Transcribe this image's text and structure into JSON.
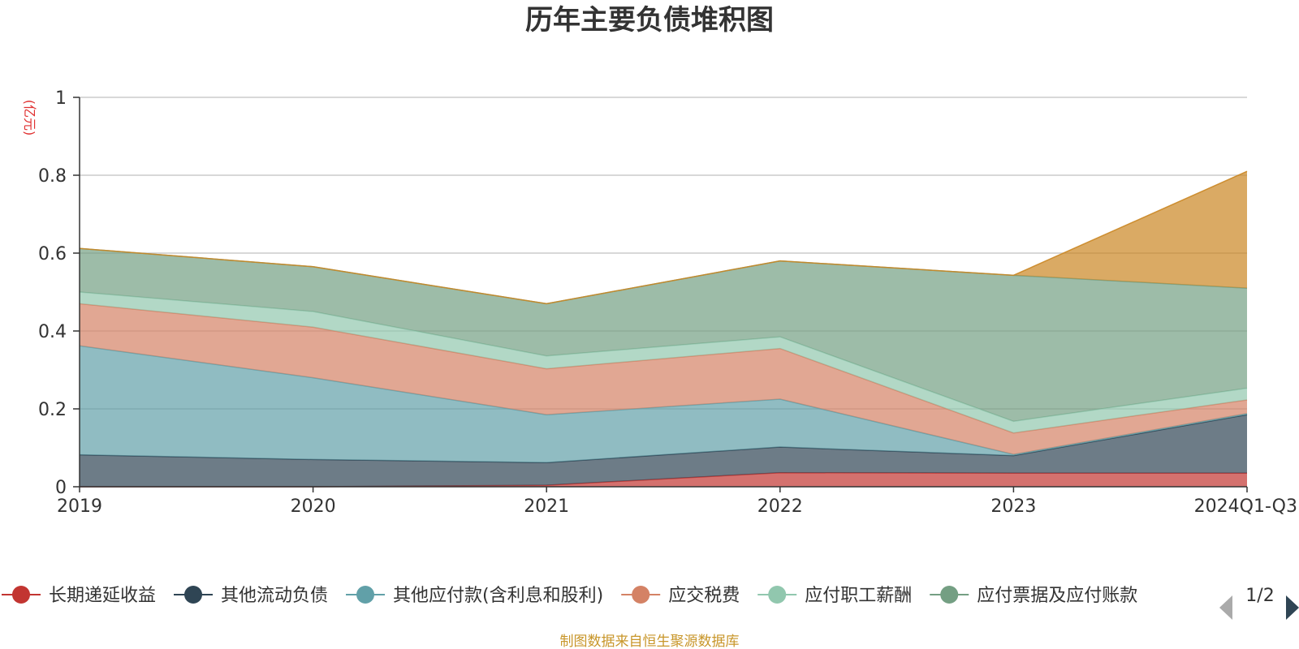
{
  "chart_data": {
    "type": "area",
    "stacked": true,
    "title": "历年主要负债堆积图",
    "unit_label": "(亿元)",
    "categories": [
      "2019",
      "2020",
      "2021",
      "2022",
      "2023",
      "2024Q1-Q3"
    ],
    "ylim": [
      0,
      1
    ],
    "yticks": [
      "0",
      "0.2",
      "0.4",
      "0.6",
      "0.8",
      "1"
    ],
    "grid": true,
    "legend_position": "bottom",
    "series": [
      {
        "name": "长期递延收益",
        "color": "#c23531",
        "values": [
          0.0,
          0.0,
          0.004,
          0.036,
          0.035,
          0.035
        ]
      },
      {
        "name": "其他流动负债",
        "color": "#2f4554",
        "values": [
          0.082,
          0.07,
          0.058,
          0.066,
          0.045,
          0.15
        ]
      },
      {
        "name": "其他应付款(含利息和股利)",
        "color": "#61a0a8",
        "values": [
          0.28,
          0.21,
          0.123,
          0.123,
          0.003,
          0.003
        ]
      },
      {
        "name": "应交税费",
        "color": "#d48265",
        "values": [
          0.108,
          0.13,
          0.118,
          0.13,
          0.055,
          0.035
        ]
      },
      {
        "name": "应付职工薪酬",
        "color": "#91c7ae",
        "values": [
          0.03,
          0.04,
          0.033,
          0.03,
          0.03,
          0.03
        ]
      },
      {
        "name": "应付票据及应付账款",
        "color": "#749f83",
        "values": [
          0.112,
          0.115,
          0.134,
          0.195,
          0.375,
          0.257
        ]
      },
      {
        "name": "",
        "color": "#ca8622",
        "values": [
          0.0,
          0.0,
          0.0,
          0.0,
          0.0,
          0.3
        ]
      }
    ],
    "legend_page": "1/2",
    "source_note": "制图数据来自恒生聚源数据库"
  }
}
